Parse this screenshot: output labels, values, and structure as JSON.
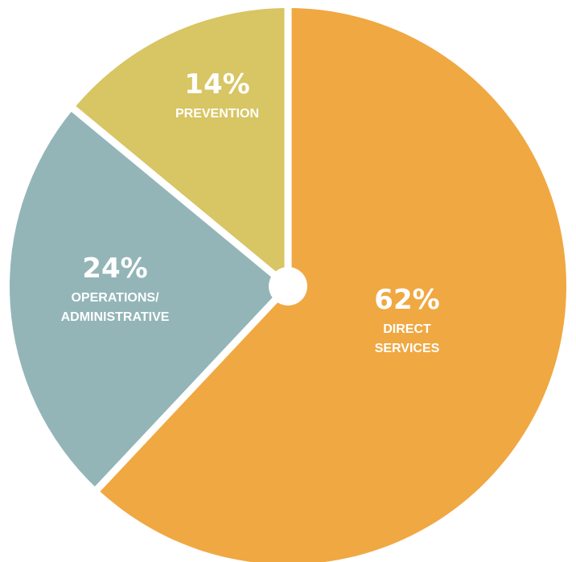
{
  "chart_data": {
    "type": "pie",
    "slices": [
      {
        "value": 62,
        "label": "62%",
        "name_lines": [
          "DIRECT",
          "SERVICES"
        ],
        "color": "#F0A842"
      },
      {
        "value": 24,
        "label": "24%",
        "name_lines": [
          "OPERATIONS/",
          "ADMINISTRATIVE"
        ],
        "color": "#93B5B8"
      },
      {
        "value": 14,
        "label": "14%",
        "name_lines": [
          "PREVENTION"
        ],
        "color": "#D8C563"
      }
    ],
    "start": "12 o'clock",
    "direction": "clockwise",
    "separator_color": "#ffffff",
    "center_dot_color": "#ffffff"
  }
}
